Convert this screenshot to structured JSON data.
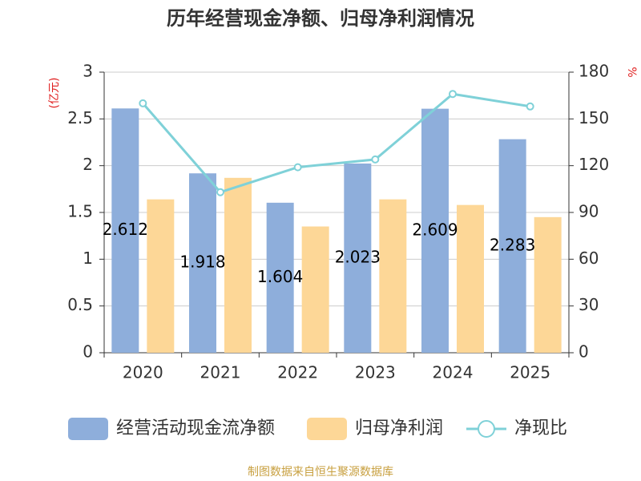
{
  "chart_data": {
    "type": "bar_line",
    "title": "历年经营现金净额、归母净利润情况",
    "y_label": "(亿元)",
    "y2_label": "%",
    "categories": [
      "2020",
      "2021",
      "2022",
      "2023",
      "2024",
      "2025"
    ],
    "series": [
      {
        "name": "经营活动现金流净额",
        "type": "bar",
        "color": "#8eaedb",
        "values": [
          2.612,
          1.918,
          1.604,
          2.023,
          2.609,
          2.283
        ],
        "show_labels": true
      },
      {
        "name": "归母净利润",
        "type": "bar",
        "color": "#fdd797",
        "values": [
          1.64,
          1.87,
          1.35,
          1.64,
          1.58,
          1.45
        ]
      },
      {
        "name": "净现比",
        "type": "line",
        "axis": "y2",
        "color": "#7fd1d8",
        "values": [
          160,
          103,
          119,
          124,
          166,
          158
        ]
      }
    ],
    "ylim": [
      0,
      3
    ],
    "yticks": [
      0,
      0.5,
      1,
      1.5,
      2,
      2.5,
      3
    ],
    "y2lim": [
      0,
      180
    ],
    "y2ticks": [
      0,
      30,
      60,
      90,
      120,
      150,
      180
    ],
    "grid": true,
    "source": "制图数据来自恒生聚源数据库"
  }
}
